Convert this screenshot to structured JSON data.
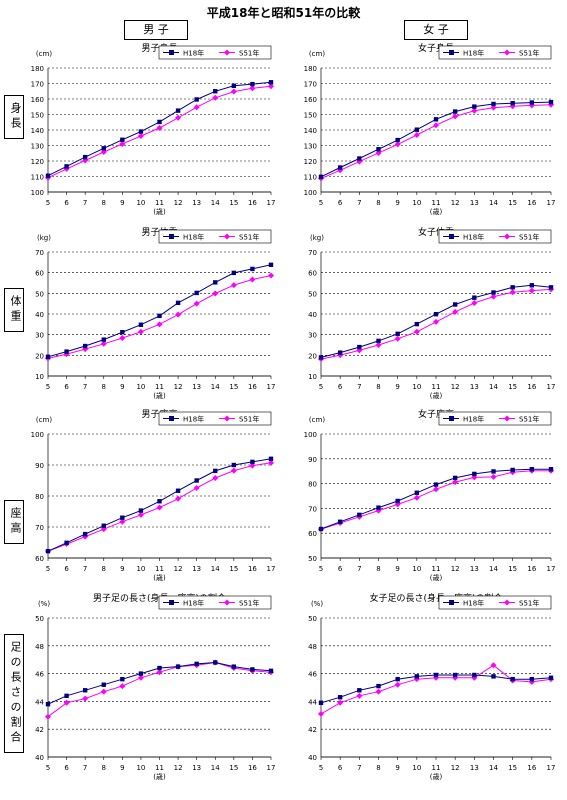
{
  "page": {
    "title": "平成18年と昭和51年の比較",
    "col_male": "男 子",
    "col_female": "女 子",
    "row_labels": [
      "身長",
      "体重",
      "座高",
      "足の長さの割合"
    ]
  },
  "colors": {
    "h18": "#000080",
    "s51": "#ff00ff"
  },
  "chart_data": [
    {
      "type": "line",
      "title": "男子身長",
      "unit": "(cm)",
      "xlabel": "(歳)",
      "x": [
        5,
        6,
        7,
        8,
        9,
        10,
        11,
        12,
        13,
        14,
        15,
        16,
        17
      ],
      "ylim": [
        100,
        180
      ],
      "ystep": 10,
      "legend": [
        "H18年",
        "S51年"
      ],
      "series": [
        {
          "name": "H18年",
          "values": [
            110.5,
            116.5,
            122.5,
            128.2,
            133.7,
            139.0,
            145.2,
            152.5,
            159.7,
            165.0,
            168.5,
            169.6,
            170.8
          ]
        },
        {
          "name": "S51年",
          "values": [
            109.2,
            114.9,
            120.3,
            125.8,
            131.0,
            136.1,
            141.3,
            147.9,
            154.7,
            160.8,
            164.8,
            166.9,
            168.2
          ]
        }
      ]
    },
    {
      "type": "line",
      "title": "女子身長",
      "unit": "(cm)",
      "xlabel": "(歳)",
      "x": [
        5,
        6,
        7,
        8,
        9,
        10,
        11,
        12,
        13,
        14,
        15,
        16,
        17
      ],
      "ylim": [
        100,
        180
      ],
      "ystep": 10,
      "legend": [
        "H18年",
        "S51年"
      ],
      "series": [
        {
          "name": "H18年",
          "values": [
            109.8,
            115.8,
            121.6,
            127.6,
            133.5,
            140.2,
            146.9,
            151.9,
            155.1,
            156.8,
            157.3,
            157.7,
            158.0
          ]
        },
        {
          "name": "S51年",
          "values": [
            108.7,
            114.0,
            119.6,
            125.2,
            130.7,
            136.8,
            143.1,
            148.8,
            152.4,
            154.4,
            155.3,
            155.9,
            156.3
          ]
        }
      ]
    },
    {
      "type": "line",
      "title": "男子体重",
      "unit": "(kg)",
      "xlabel": "(歳)",
      "x": [
        5,
        6,
        7,
        8,
        9,
        10,
        11,
        12,
        13,
        14,
        15,
        16,
        17
      ],
      "ylim": [
        10,
        70
      ],
      "ystep": 10,
      "legend": [
        "H18年",
        "S51年"
      ],
      "series": [
        {
          "name": "H18年",
          "values": [
            19.3,
            21.8,
            24.5,
            27.6,
            31.2,
            34.8,
            39.1,
            45.4,
            50.2,
            55.3,
            59.9,
            61.8,
            63.8
          ]
        },
        {
          "name": "S51年",
          "values": [
            18.5,
            20.6,
            23.0,
            25.6,
            28.4,
            31.4,
            35.0,
            39.7,
            45.0,
            49.9,
            54.0,
            56.7,
            58.6
          ]
        }
      ]
    },
    {
      "type": "line",
      "title": "女子体重",
      "unit": "(kg)",
      "xlabel": "(歳)",
      "x": [
        5,
        6,
        7,
        8,
        9,
        10,
        11,
        12,
        13,
        14,
        15,
        16,
        17
      ],
      "ylim": [
        10,
        70
      ],
      "ystep": 10,
      "legend": [
        "H18年",
        "S51年"
      ],
      "series": [
        {
          "name": "H18年",
          "values": [
            19.0,
            21.3,
            24.0,
            27.0,
            30.4,
            35.1,
            39.9,
            44.6,
            47.9,
            50.4,
            52.9,
            53.9,
            52.9
          ]
        },
        {
          "name": "S51年",
          "values": [
            18.2,
            20.1,
            22.4,
            25.0,
            28.0,
            31.4,
            36.2,
            41.0,
            45.3,
            48.4,
            50.5,
            51.3,
            51.9
          ]
        }
      ]
    },
    {
      "type": "line",
      "title": "男子座高",
      "unit": "(cm)",
      "xlabel": "(歳)",
      "x": [
        5,
        6,
        7,
        8,
        9,
        10,
        11,
        12,
        13,
        14,
        15,
        16,
        17
      ],
      "ylim": [
        60,
        100
      ],
      "ystep": 10,
      "legend": [
        "H18年",
        "S51年"
      ],
      "series": [
        {
          "name": "H18年",
          "values": [
            62.2,
            64.9,
            67.7,
            70.4,
            73.0,
            75.3,
            78.3,
            81.7,
            85.0,
            88.1,
            90.0,
            91.0,
            92.0
          ]
        },
        {
          "name": "S51年",
          "values": [
            62.2,
            64.5,
            66.9,
            69.3,
            71.7,
            73.9,
            76.3,
            79.1,
            82.6,
            85.8,
            88.2,
            89.8,
            90.7
          ]
        }
      ]
    },
    {
      "type": "line",
      "title": "女子座高",
      "unit": "(cm)",
      "xlabel": "(歳)",
      "x": [
        5,
        6,
        7,
        8,
        9,
        10,
        11,
        12,
        13,
        14,
        15,
        16,
        17
      ],
      "ylim": [
        50,
        100
      ],
      "ystep": 10,
      "legend": [
        "H18年",
        "S51年"
      ],
      "series": [
        {
          "name": "H18年",
          "values": [
            61.7,
            64.6,
            67.4,
            70.3,
            73.0,
            76.3,
            79.6,
            82.3,
            83.9,
            84.9,
            85.5,
            85.8,
            85.8
          ]
        },
        {
          "name": "S51年",
          "values": [
            61.6,
            64.1,
            66.6,
            69.1,
            71.6,
            74.3,
            77.7,
            80.6,
            82.5,
            82.7,
            84.6,
            85.2,
            85.2
          ]
        }
      ]
    },
    {
      "type": "line",
      "title": "男子足の長さ(身長－座高)の割合",
      "unit": "(%)",
      "xlabel": "(歳)",
      "x": [
        5,
        6,
        7,
        8,
        9,
        10,
        11,
        12,
        13,
        14,
        15,
        16,
        17
      ],
      "ylim": [
        40,
        50
      ],
      "ystep": 2,
      "legend": [
        "H18年",
        "S51年"
      ],
      "series": [
        {
          "name": "H18年",
          "values": [
            43.8,
            44.4,
            44.8,
            45.2,
            45.6,
            46.0,
            46.4,
            46.5,
            46.7,
            46.8,
            46.5,
            46.3,
            46.2
          ]
        },
        {
          "name": "S51年",
          "values": [
            42.9,
            43.9,
            44.2,
            44.7,
            45.1,
            45.7,
            46.1,
            46.5,
            46.6,
            46.8,
            46.4,
            46.2,
            46.1
          ]
        }
      ]
    },
    {
      "type": "line",
      "title": "女子足の長さ(身長－座高)の割合",
      "unit": "(%)",
      "xlabel": "(歳)",
      "x": [
        5,
        6,
        7,
        8,
        9,
        10,
        11,
        12,
        13,
        14,
        15,
        16,
        17
      ],
      "ylim": [
        40,
        50
      ],
      "ystep": 2,
      "legend": [
        "H18年",
        "S51年"
      ],
      "series": [
        {
          "name": "H18年",
          "values": [
            43.9,
            44.3,
            44.8,
            45.1,
            45.6,
            45.8,
            45.9,
            45.9,
            45.9,
            45.8,
            45.6,
            45.6,
            45.7
          ]
        },
        {
          "name": "S51年",
          "values": [
            43.1,
            43.9,
            44.4,
            44.7,
            45.2,
            45.6,
            45.7,
            45.7,
            45.7,
            46.6,
            45.5,
            45.4,
            45.6
          ]
        }
      ]
    }
  ]
}
